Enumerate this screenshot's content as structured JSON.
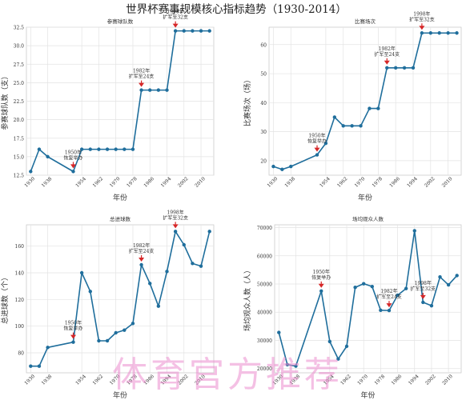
{
  "figure_title": "世界杯赛事规模核心指标趋势（1930-2014）",
  "watermark": "体育官方推荐",
  "chart_data": [
    {
      "type": "line",
      "title": "参赛球队数",
      "xlabel": "年份",
      "ylabel": "参赛球队数（支）",
      "x": [
        1930,
        1934,
        1938,
        1950,
        1954,
        1958,
        1962,
        1966,
        1970,
        1974,
        1978,
        1982,
        1986,
        1990,
        1994,
        1998,
        2002,
        2006,
        2010,
        2014
      ],
      "values": [
        13,
        16,
        15,
        13,
        16,
        16,
        16,
        16,
        16,
        16,
        16,
        24,
        24,
        24,
        24,
        32,
        32,
        32,
        32,
        32
      ],
      "xticks": [
        1930,
        1938,
        1954,
        1962,
        1970,
        1978,
        1986,
        1994,
        2002,
        2010
      ],
      "ylim": [
        12.5,
        32.5
      ],
      "yticks": [
        "12.5",
        "15.0",
        "17.5",
        "20.0",
        "22.5",
        "25.0",
        "27.5",
        "30.0",
        "32.5"
      ],
      "grid": true,
      "annotations": [
        {
          "x": 1950,
          "y": 13,
          "lines": [
            "1950年",
            "恢复举办"
          ]
        },
        {
          "x": 1982,
          "y": 24,
          "lines": [
            "1982年",
            "扩军至24支"
          ]
        },
        {
          "x": 1998,
          "y": 32,
          "lines": [
            "1998年",
            "扩军至32支"
          ]
        }
      ]
    },
    {
      "type": "line",
      "title": "比赛场次",
      "xlabel": "年份",
      "ylabel": "比赛场次（场）",
      "x": [
        1930,
        1934,
        1938,
        1950,
        1954,
        1958,
        1962,
        1966,
        1970,
        1974,
        1978,
        1982,
        1986,
        1990,
        1994,
        1998,
        2002,
        2006,
        2010,
        2014
      ],
      "values": [
        18,
        17,
        18,
        22,
        26,
        35,
        32,
        32,
        32,
        38,
        38,
        52,
        52,
        52,
        52,
        64,
        64,
        64,
        64,
        64
      ],
      "xticks": [
        1930,
        1938,
        1954,
        1962,
        1970,
        1978,
        1986,
        1994,
        2002,
        2010
      ],
      "ylim": [
        15,
        66
      ],
      "yticks": [
        "20",
        "30",
        "40",
        "50",
        "60"
      ],
      "grid": true,
      "annotations": [
        {
          "x": 1950,
          "y": 22,
          "lines": [
            "1950年",
            "恢复举办"
          ]
        },
        {
          "x": 1982,
          "y": 52,
          "lines": [
            "1982年",
            "扩军至24支"
          ]
        },
        {
          "x": 1998,
          "y": 64,
          "lines": [
            "1998年",
            "扩军至32支"
          ]
        }
      ]
    },
    {
      "type": "line",
      "title": "总进球数",
      "xlabel": "年份",
      "ylabel": "总进球数（个）",
      "x": [
        1930,
        1934,
        1938,
        1950,
        1954,
        1958,
        1962,
        1966,
        1970,
        1974,
        1978,
        1982,
        1986,
        1990,
        1994,
        1998,
        2002,
        2006,
        2010,
        2014
      ],
      "values": [
        70,
        70,
        84,
        88,
        140,
        126,
        89,
        89,
        95,
        97,
        102,
        146,
        132,
        115,
        141,
        171,
        161,
        147,
        145,
        171
      ],
      "xticks": [
        1930,
        1938,
        1954,
        1962,
        1970,
        1978,
        1986,
        1994,
        2002,
        2010
      ],
      "ylim": [
        65,
        176
      ],
      "yticks": [
        "80",
        "100",
        "120",
        "140",
        "160"
      ],
      "grid": true,
      "annotations": [
        {
          "x": 1950,
          "y": 88,
          "lines": [
            "1950年",
            "恢复举办"
          ]
        },
        {
          "x": 1982,
          "y": 146,
          "lines": [
            "1982年",
            "扩军至24支"
          ]
        },
        {
          "x": 1998,
          "y": 171,
          "lines": [
            "1998年",
            "扩军至32支"
          ]
        }
      ]
    },
    {
      "type": "line",
      "title": "场均观众人数",
      "xlabel": "年份",
      "ylabel": "场均观众人数（人）",
      "x": [
        1930,
        1934,
        1938,
        1950,
        1954,
        1958,
        1962,
        1966,
        1970,
        1974,
        1978,
        1982,
        1986,
        1990,
        1994,
        1998,
        2002,
        2006,
        2010,
        2014
      ],
      "values": [
        32800,
        21400,
        20900,
        47500,
        29600,
        23400,
        27900,
        48800,
        50100,
        49100,
        40700,
        40600,
        46000,
        48400,
        68900,
        43500,
        42300,
        52500,
        49700,
        53000
      ],
      "xticks": [
        1930,
        1938,
        1954,
        1962,
        1970,
        1978,
        1986,
        1994,
        2002,
        2010
      ],
      "ylim": [
        18500,
        71000
      ],
      "yticks": [
        "20000",
        "30000",
        "40000",
        "50000",
        "60000",
        "70000"
      ],
      "grid": true,
      "annotations": [
        {
          "x": 1950,
          "y": 47500,
          "lines": [
            "1950年",
            "恢复举办"
          ]
        },
        {
          "x": 1982,
          "y": 40600,
          "lines": [
            "1982年",
            "扩军至24支"
          ]
        },
        {
          "x": 1998,
          "y": 43500,
          "lines": [
            "1998年",
            "扩军至32支"
          ]
        }
      ]
    }
  ],
  "colors": {
    "line": "#1f6e9c",
    "marker": "#1f6e9c",
    "arrow": "#d62728",
    "grid": "#e3e3e3",
    "axis": "#555555",
    "text": "#333333"
  }
}
